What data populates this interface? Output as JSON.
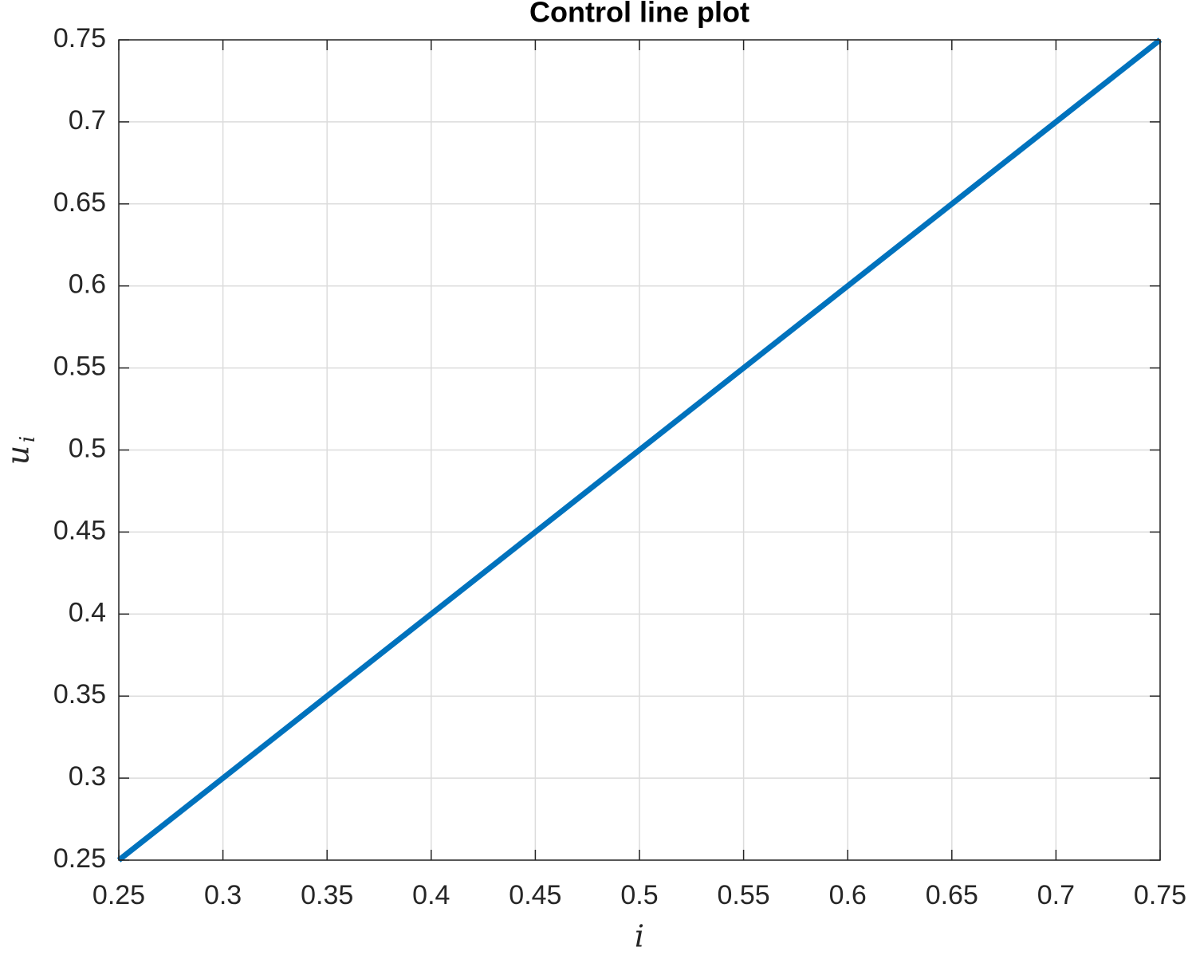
{
  "chart_data": {
    "type": "line",
    "title": "Control line plot",
    "xlabel": "i",
    "ylabel": "u",
    "ylabel_subscript": "i",
    "x": [
      0.25,
      0.75
    ],
    "series": [
      {
        "color": "#0072bd",
        "values": [
          0.25,
          0.75
        ]
      }
    ],
    "xlim": [
      0.25,
      0.75
    ],
    "ylim": [
      0.25,
      0.75
    ],
    "xticks": [
      0.25,
      0.3,
      0.35,
      0.4,
      0.45,
      0.5,
      0.55,
      0.6,
      0.65,
      0.7,
      0.75
    ],
    "yticks": [
      0.25,
      0.3,
      0.35,
      0.4,
      0.45,
      0.5,
      0.55,
      0.6,
      0.65,
      0.7,
      0.75
    ],
    "grid": true
  }
}
